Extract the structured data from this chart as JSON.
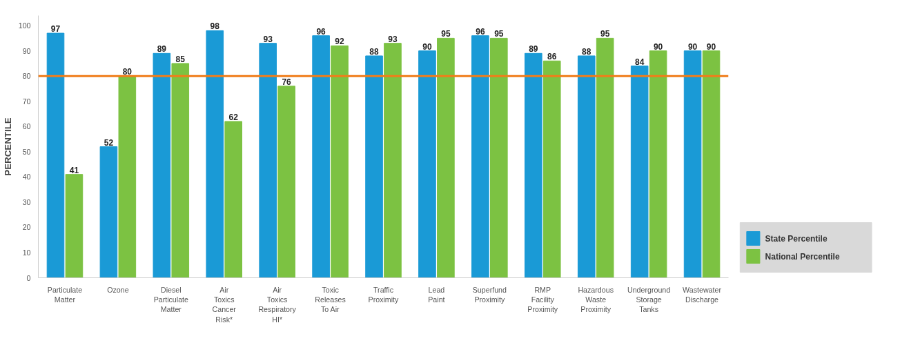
{
  "chart_data": {
    "type": "bar",
    "ylabel": "PERCENTILE",
    "categories": [
      "Particulate\nMatter",
      "Ozone",
      "Diesel\nParticulate\nMatter",
      "Air\nToxics\nCancer\nRisk*",
      "Air\nToxics\nRespiratory\nHI*",
      "Toxic\nReleases\nTo Air",
      "Traffic\nProximity",
      "Lead\nPaint",
      "Superfund\nProximity",
      "RMP\nFacility\nProximity",
      "Hazardous\nWaste\nProximity",
      "Underground\nStorage\nTanks",
      "Wastewater\nDischarge"
    ],
    "series": [
      {
        "name": "State Percentile",
        "color": "#1a9ad6",
        "values": [
          97,
          52,
          89,
          98,
          93,
          96,
          88,
          90,
          96,
          89,
          88,
          84,
          90
        ]
      },
      {
        "name": "National Percentile",
        "color": "#7cc242",
        "values": [
          41,
          80,
          85,
          62,
          76,
          92,
          93,
          95,
          95,
          86,
          95,
          90,
          90
        ]
      }
    ],
    "ylim": [
      0,
      104
    ],
    "yticks": [
      0,
      10,
      20,
      30,
      40,
      50,
      60,
      70,
      80,
      90,
      100
    ],
    "ref_lines": [
      {
        "axis": "y",
        "value": 80,
        "color": "#f07d1a"
      }
    ],
    "data_labels": true,
    "legend": "bottom right"
  }
}
